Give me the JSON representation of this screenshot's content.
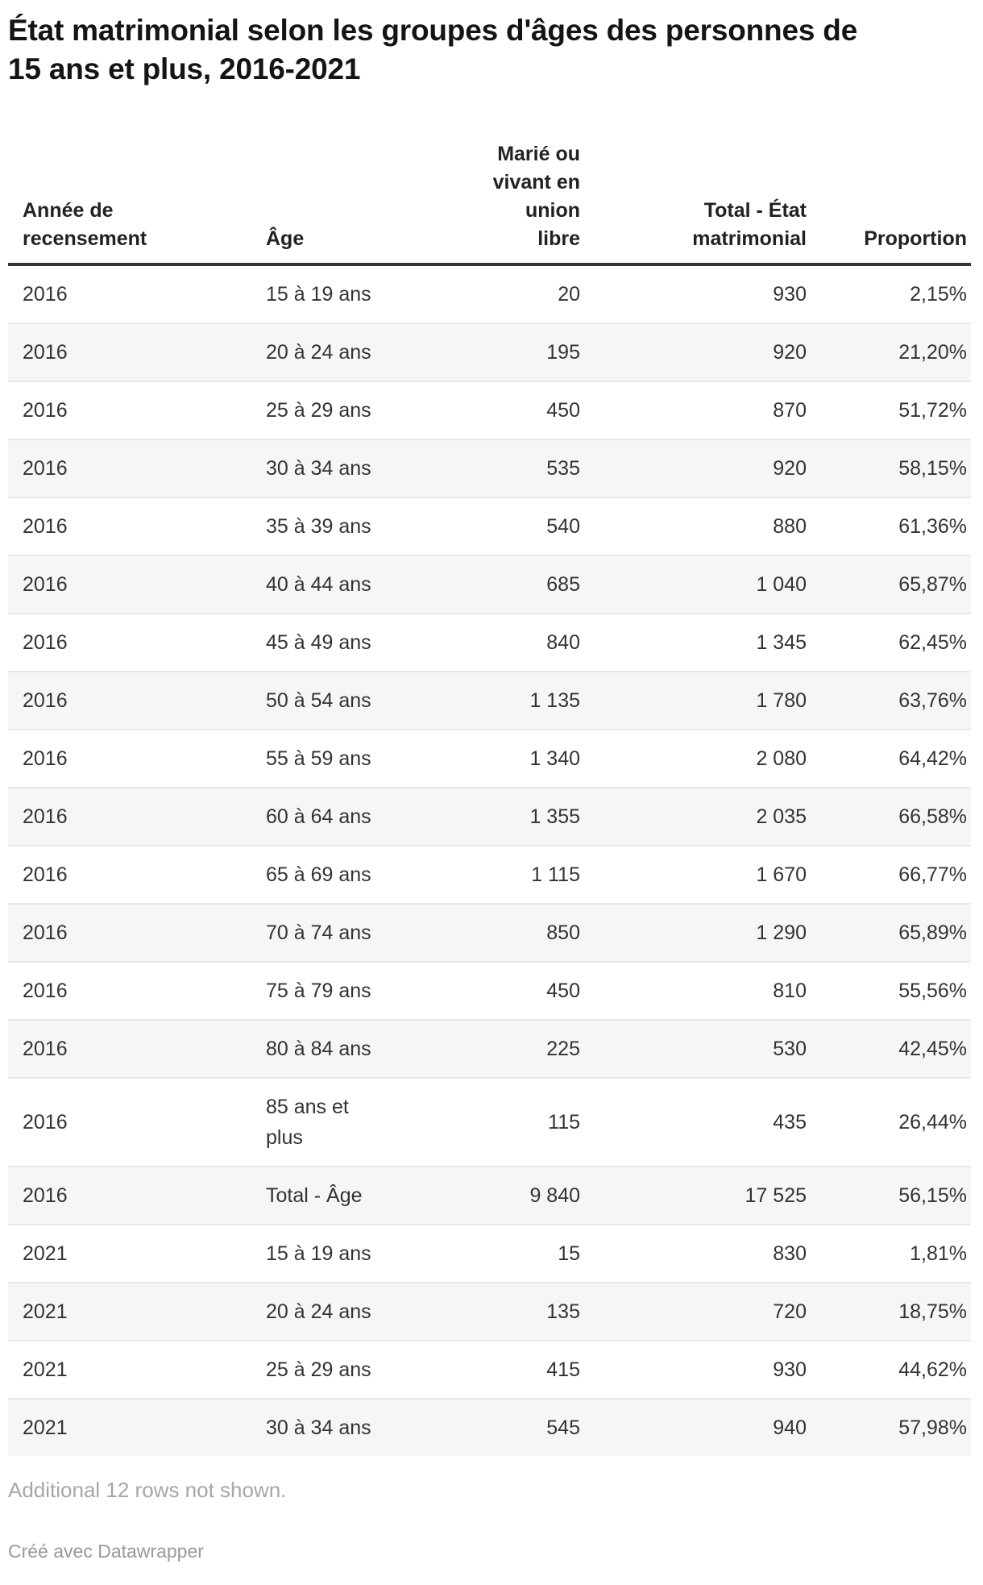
{
  "chart_data": {
    "type": "table",
    "title": "État matrimonial selon les groupes d'âges des personnes de\n15 ans et plus, 2016-2021",
    "columns": [
      {
        "id": "annee",
        "label": "Année de recensement",
        "display": "Année de\nrecensement",
        "align": "left"
      },
      {
        "id": "age",
        "label": "Âge",
        "display": "Âge",
        "align": "left"
      },
      {
        "id": "marie",
        "label": "Marié ou vivant en union libre",
        "display": "Marié ou\nvivant en\nunion\nlibre",
        "align": "right"
      },
      {
        "id": "total",
        "label": "Total - État matrimonial",
        "display": "Total - État\nmatrimonial",
        "align": "right"
      },
      {
        "id": "proportion",
        "label": "Proportion",
        "display": "Proportion",
        "align": "right"
      }
    ],
    "rows": [
      [
        "2016",
        "15 à 19 ans",
        "20",
        "930",
        "2,15%"
      ],
      [
        "2016",
        "20 à 24 ans",
        "195",
        "920",
        "21,20%"
      ],
      [
        "2016",
        "25 à 29 ans",
        "450",
        "870",
        "51,72%"
      ],
      [
        "2016",
        "30 à 34 ans",
        "535",
        "920",
        "58,15%"
      ],
      [
        "2016",
        "35 à 39 ans",
        "540",
        "880",
        "61,36%"
      ],
      [
        "2016",
        "40 à 44 ans",
        "685",
        "1 040",
        "65,87%"
      ],
      [
        "2016",
        "45 à 49 ans",
        "840",
        "1 345",
        "62,45%"
      ],
      [
        "2016",
        "50 à 54 ans",
        "1 135",
        "1 780",
        "63,76%"
      ],
      [
        "2016",
        "55 à 59 ans",
        "1 340",
        "2 080",
        "64,42%"
      ],
      [
        "2016",
        "60 à 64 ans",
        "1 355",
        "2 035",
        "66,58%"
      ],
      [
        "2016",
        "65 à 69 ans",
        "1 115",
        "1 670",
        "66,77%"
      ],
      [
        "2016",
        "70 à 74 ans",
        "850",
        "1 290",
        "65,89%"
      ],
      [
        "2016",
        "75 à 79 ans",
        "450",
        "810",
        "55,56%"
      ],
      [
        "2016",
        "80 à 84 ans",
        "225",
        "530",
        "42,45%"
      ],
      [
        "2016",
        "85 ans et\nplus",
        "115",
        "435",
        "26,44%"
      ],
      [
        "2016",
        "Total - Âge",
        "9 840",
        "17 525",
        "56,15%"
      ],
      [
        "2021",
        "15 à 19 ans",
        "15",
        "830",
        "1,81%"
      ],
      [
        "2021",
        "20 à 24 ans",
        "135",
        "720",
        "18,75%"
      ],
      [
        "2021",
        "25 à 29 ans",
        "415",
        "930",
        "44,62%"
      ],
      [
        "2021",
        "30 à 34 ans",
        "545",
        "940",
        "57,98%"
      ]
    ],
    "layout_hints": {
      "striped_rows": true,
      "stripe_color": "#f6f6f6",
      "header_rule_color": "#333333",
      "row_divider_color": "#e8e8e8",
      "grid": "horizontal-only",
      "column_alignments": [
        "left",
        "left",
        "right",
        "right",
        "right"
      ]
    }
  },
  "footer": {
    "note": "Additional 12 rows not shown.",
    "attribution": "Créé avec Datawrapper"
  },
  "colors": {
    "title": "#141414",
    "body_text": "#333333",
    "header_text": "#222222",
    "muted_note": "#a6a6a6",
    "attribution": "#999999",
    "stripe": "#f6f6f6",
    "row_divider": "#e8e8e8",
    "header_rule": "#333333",
    "background": "#ffffff"
  }
}
